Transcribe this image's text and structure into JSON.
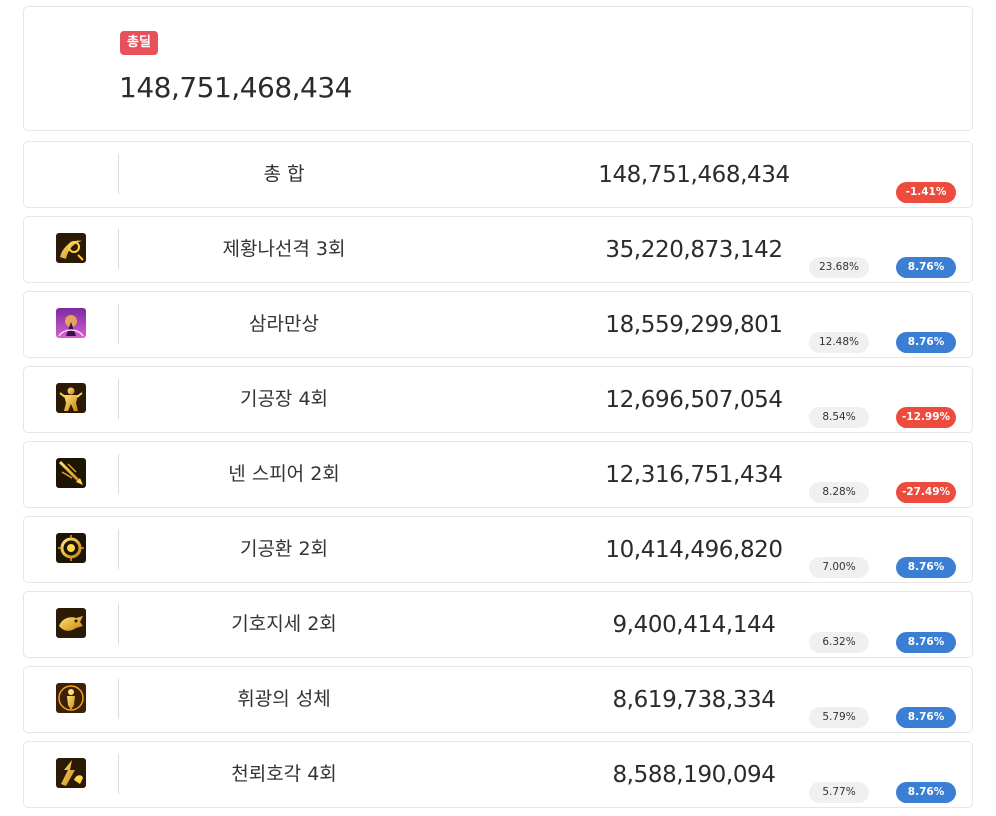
{
  "summary": {
    "badge": "총딜",
    "total": "148,751,468,434"
  },
  "total_row": {
    "name": "총 합",
    "value": "148,751,468,434",
    "change": "-1.41%",
    "direction": "down"
  },
  "skills": [
    {
      "icon": "spiral-strike-icon",
      "name": "제황나선격 3회",
      "value": "35,220,873,142",
      "share": "23.68%",
      "change": "8.76%",
      "direction": "up"
    },
    {
      "icon": "purple-aura-icon",
      "name": "삼라만상",
      "value": "18,559,299,801",
      "share": "12.48%",
      "change": "8.76%",
      "direction": "up"
    },
    {
      "icon": "fighter-stance-icon",
      "name": "기공장 4회",
      "value": "12,696,507,054",
      "share": "8.54%",
      "change": "-12.99%",
      "direction": "down"
    },
    {
      "icon": "spear-thrust-icon",
      "name": "넨 스피어 2회",
      "value": "12,316,751,434",
      "share": "8.28%",
      "change": "-27.49%",
      "direction": "down"
    },
    {
      "icon": "energy-ring-icon",
      "name": "기공환 2회",
      "value": "10,414,496,820",
      "share": "7.00%",
      "change": "8.76%",
      "direction": "up"
    },
    {
      "icon": "tiger-rush-icon",
      "name": "기호지세 2회",
      "value": "9,400,414,144",
      "share": "6.32%",
      "change": "8.76%",
      "direction": "up"
    },
    {
      "icon": "radiant-figure-icon",
      "name": "휘광의 성체",
      "value": "8,619,738,334",
      "share": "5.79%",
      "change": "8.76%",
      "direction": "up"
    },
    {
      "icon": "thunder-tiger-icon",
      "name": "천뢰호각 4회",
      "value": "8,588,190,094",
      "share": "5.77%",
      "change": "8.76%",
      "direction": "up"
    }
  ]
}
